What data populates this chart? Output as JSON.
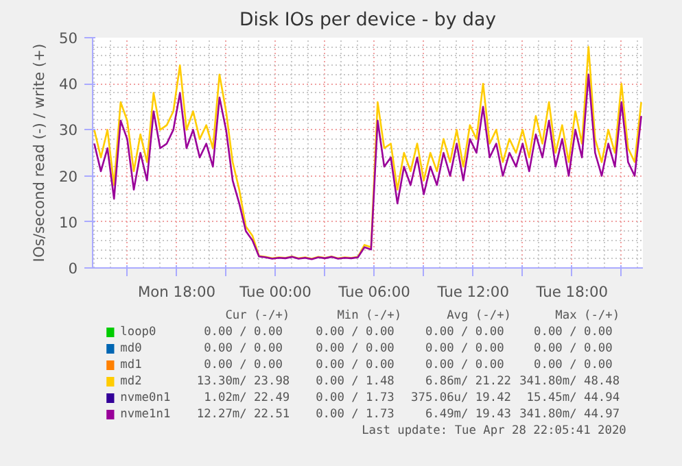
{
  "chart_data": {
    "type": "line",
    "title": "Disk IOs per device - by day",
    "ylabel": "IOs/second read (-) / write (+)",
    "x": [
      "2020-04-27T13:00",
      "2020-04-27T13:24",
      "2020-04-27T13:48",
      "2020-04-27T14:12",
      "2020-04-27T14:36",
      "2020-04-27T15:00",
      "2020-04-27T15:24",
      "2020-04-27T15:48",
      "2020-04-27T16:12",
      "2020-04-27T16:36",
      "2020-04-27T17:00",
      "2020-04-27T17:24",
      "2020-04-27T17:48",
      "2020-04-27T18:12",
      "2020-04-27T18:36",
      "2020-04-27T19:00",
      "2020-04-27T19:24",
      "2020-04-27T19:48",
      "2020-04-27T20:12",
      "2020-04-27T20:36",
      "2020-04-27T21:00",
      "2020-04-27T21:24",
      "2020-04-27T21:48",
      "2020-04-27T22:12",
      "2020-04-27T22:36",
      "2020-04-27T23:00",
      "2020-04-27T23:24",
      "2020-04-27T23:48",
      "2020-04-28T00:12",
      "2020-04-28T00:36",
      "2020-04-28T01:00",
      "2020-04-28T01:24",
      "2020-04-28T01:48",
      "2020-04-28T02:12",
      "2020-04-28T02:36",
      "2020-04-28T03:00",
      "2020-04-28T03:24",
      "2020-04-28T03:48",
      "2020-04-28T04:12",
      "2020-04-28T04:36",
      "2020-04-28T05:00",
      "2020-04-28T05:24",
      "2020-04-28T05:48",
      "2020-04-28T06:12",
      "2020-04-28T06:36",
      "2020-04-28T07:00",
      "2020-04-28T07:24",
      "2020-04-28T07:48",
      "2020-04-28T08:12",
      "2020-04-28T08:36",
      "2020-04-28T09:00",
      "2020-04-28T09:24",
      "2020-04-28T09:48",
      "2020-04-28T10:12",
      "2020-04-28T10:36",
      "2020-04-28T11:00",
      "2020-04-28T11:24",
      "2020-04-28T11:48",
      "2020-04-28T12:12",
      "2020-04-28T12:36",
      "2020-04-28T13:00",
      "2020-04-28T13:24",
      "2020-04-28T13:48",
      "2020-04-28T14:12",
      "2020-04-28T14:36",
      "2020-04-28T15:00",
      "2020-04-28T15:24",
      "2020-04-28T15:48",
      "2020-04-28T16:12",
      "2020-04-28T16:36",
      "2020-04-28T17:00",
      "2020-04-28T17:24",
      "2020-04-28T17:48",
      "2020-04-28T18:12",
      "2020-04-28T18:36",
      "2020-04-28T19:00",
      "2020-04-28T19:24",
      "2020-04-28T19:48",
      "2020-04-28T20:12",
      "2020-04-28T20:36",
      "2020-04-28T21:00",
      "2020-04-28T21:24",
      "2020-04-28T21:48",
      "2020-04-28T22:12"
    ],
    "series": [
      {
        "name": "loop0",
        "color": "#00cc00",
        "values": [
          null,
          null,
          null,
          null,
          null,
          null,
          null,
          null,
          null,
          null,
          null,
          null,
          null,
          null,
          null,
          null,
          null,
          null,
          null,
          null,
          null,
          null,
          null,
          null,
          null,
          null,
          null,
          null,
          null,
          null,
          null,
          null,
          null,
          null,
          null,
          null,
          null,
          null,
          null,
          null,
          null,
          null,
          null,
          null,
          null,
          null,
          null,
          null,
          null,
          null,
          null,
          null,
          null,
          null,
          null,
          null,
          null,
          null,
          null,
          null,
          null,
          null,
          null,
          null,
          null,
          null,
          null,
          null,
          null,
          null,
          null,
          null,
          null,
          null,
          null,
          null,
          null,
          null,
          null,
          null,
          null,
          null,
          null,
          null
        ]
      },
      {
        "name": "md0",
        "color": "#0066b3",
        "values": [
          null,
          null,
          null,
          null,
          null,
          null,
          null,
          null,
          null,
          null,
          null,
          null,
          null,
          null,
          null,
          null,
          null,
          null,
          null,
          null,
          null,
          null,
          null,
          null,
          null,
          null,
          null,
          null,
          null,
          null,
          null,
          null,
          null,
          null,
          null,
          null,
          null,
          null,
          null,
          null,
          null,
          null,
          null,
          null,
          null,
          null,
          null,
          null,
          null,
          null,
          null,
          null,
          null,
          null,
          null,
          null,
          null,
          null,
          null,
          null,
          null,
          null,
          null,
          null,
          null,
          null,
          null,
          null,
          null,
          null,
          null,
          null,
          null,
          null,
          null,
          null,
          null,
          null,
          null,
          null,
          null,
          null,
          null,
          null
        ]
      },
      {
        "name": "md1",
        "color": "#ff8000",
        "values": [
          null,
          null,
          null,
          null,
          null,
          null,
          null,
          null,
          null,
          null,
          null,
          null,
          null,
          null,
          null,
          null,
          null,
          null,
          null,
          null,
          null,
          null,
          null,
          null,
          null,
          null,
          null,
          null,
          null,
          null,
          null,
          null,
          null,
          null,
          null,
          null,
          null,
          null,
          null,
          null,
          null,
          null,
          null,
          null,
          null,
          null,
          null,
          null,
          null,
          null,
          null,
          null,
          null,
          null,
          null,
          null,
          null,
          null,
          null,
          null,
          null,
          null,
          null,
          null,
          null,
          null,
          null,
          null,
          null,
          null,
          null,
          null,
          null,
          null,
          null,
          null,
          null,
          null,
          null,
          null,
          null,
          null,
          null,
          null
        ]
      },
      {
        "name": "md2",
        "color": "#ffcc00",
        "values": [
          30,
          24,
          30,
          18,
          36,
          32,
          21,
          29,
          23,
          38,
          30,
          31,
          34,
          44,
          30,
          34,
          28,
          31,
          26,
          42,
          34,
          23,
          17,
          9,
          7,
          2.6,
          2.4,
          2.1,
          2.3,
          2.2,
          2.5,
          2.1,
          2.3,
          2.0,
          2.4,
          2.2,
          2.5,
          2.1,
          2.3,
          2.2,
          2.4,
          5,
          4.5,
          36,
          26,
          27,
          17,
          25,
          21,
          27,
          19,
          25,
          21,
          28,
          23,
          30,
          22,
          31,
          28,
          40,
          27,
          30,
          23,
          28,
          25,
          30,
          24,
          33,
          27,
          36,
          25,
          31,
          23,
          34,
          27,
          48,
          28,
          23,
          30,
          25,
          40,
          26,
          23,
          36
        ]
      },
      {
        "name": "nvme0n1",
        "color": "#330099",
        "values": [
          null,
          null,
          null,
          null,
          null,
          null,
          null,
          null,
          null,
          null,
          null,
          null,
          null,
          null,
          null,
          null,
          null,
          null,
          null,
          null,
          null,
          null,
          null,
          null,
          null,
          null,
          null,
          null,
          null,
          null,
          null,
          null,
          null,
          null,
          null,
          null,
          null,
          null,
          null,
          null,
          null,
          null,
          null,
          null,
          null,
          null,
          null,
          null,
          null,
          null,
          null,
          null,
          null,
          null,
          null,
          null,
          null,
          null,
          null,
          null,
          null,
          null,
          null,
          null,
          null,
          null,
          null,
          null,
          null,
          null,
          null,
          null,
          null,
          null,
          null,
          null,
          null,
          null,
          null,
          null,
          null,
          null,
          null,
          null
        ]
      },
      {
        "name": "nvme1n1",
        "color": "#990099",
        "values": [
          27,
          21,
          26,
          15,
          32,
          28,
          17,
          25,
          19,
          34,
          26,
          27,
          30,
          38,
          26,
          30,
          24,
          27,
          22,
          37,
          30,
          19,
          14,
          8,
          6,
          2.5,
          2.3,
          2.0,
          2.2,
          2.1,
          2.4,
          2.0,
          2.2,
          1.9,
          2.3,
          2.1,
          2.4,
          2.0,
          2.2,
          2.1,
          2.3,
          4.5,
          4,
          32,
          22,
          24,
          14,
          22,
          18,
          24,
          16,
          22,
          18,
          25,
          20,
          27,
          19,
          28,
          25,
          35,
          24,
          27,
          20,
          25,
          22,
          27,
          21,
          29,
          24,
          32,
          22,
          28,
          20,
          30,
          24,
          42,
          25,
          20,
          27,
          22,
          36,
          23,
          20,
          33
        ]
      }
    ],
    "xlim": [
      "2020-04-27T12:54",
      "2020-04-28T22:18"
    ],
    "ylim": [
      0,
      50
    ],
    "xticks": [
      {
        "value": "2020-04-27T15:00",
        "label": null
      },
      {
        "value": "2020-04-27T18:00",
        "label": "Mon 18:00"
      },
      {
        "value": "2020-04-27T21:00",
        "label": null
      },
      {
        "value": "2020-04-28T00:00",
        "label": "Tue 00:00"
      },
      {
        "value": "2020-04-28T03:00",
        "label": null
      },
      {
        "value": "2020-04-28T06:00",
        "label": "Tue 06:00"
      },
      {
        "value": "2020-04-28T09:00",
        "label": null
      },
      {
        "value": "2020-04-28T12:00",
        "label": "Tue 12:00"
      },
      {
        "value": "2020-04-28T15:00",
        "label": null
      },
      {
        "value": "2020-04-28T18:00",
        "label": "Tue 18:00"
      },
      {
        "value": "2020-04-28T21:00",
        "label": null
      }
    ],
    "yticks": [
      0,
      10,
      20,
      30,
      40,
      50
    ],
    "grid": true,
    "legend": "bottom",
    "marker": "none",
    "line_style": "solid",
    "annotations": [
      "Cur (-/+)",
      "Min (-/+)",
      "Avg (-/+)",
      "Max (-/+)",
      "0.00 /  0.00",
      "0.00 /  0.00",
      "0.00 /  0.00",
      "0.00 /  0.00",
      "0.00 /  0.00",
      "0.00 /  0.00",
      "0.00 /  0.00",
      "0.00 /  0.00",
      "0.00 /  0.00",
      "0.00 /  0.00",
      "0.00 /  0.00",
      "0.00 /  0.00",
      "13.30m/ 23.98",
      "0.00 /  1.48",
      "6.86m/ 21.22",
      "341.80m/ 48.48",
      "1.02m/ 22.49",
      "0.00 /  1.73",
      "375.06u/ 19.42",
      "15.45m/ 44.94",
      "12.27m/ 22.51",
      "0.00 /  1.73",
      "6.49m/ 19.43",
      "341.80m/ 44.97",
      "Last update: Tue Apr 28 22:05:41 2020"
    ]
  }
}
